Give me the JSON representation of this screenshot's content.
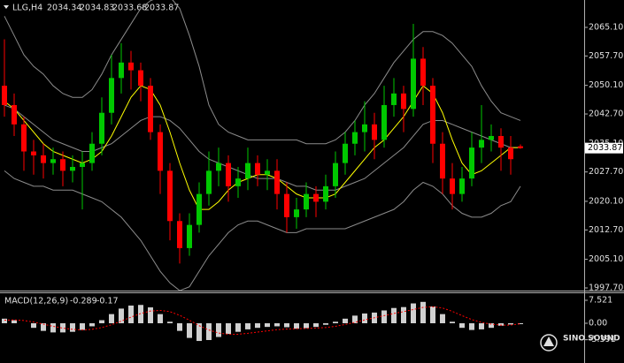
{
  "header": {
    "symbol": "LLG,H4"
  },
  "chart_data": [
    {
      "type": "candlestick",
      "open": [
        2050,
        2045,
        2040,
        2033,
        2032,
        2030,
        2031,
        2028,
        2029,
        2030,
        2035,
        2043,
        2052,
        2056,
        2054,
        2050,
        2038,
        2028,
        2015,
        2008,
        2014,
        2022,
        2028,
        2030,
        2024,
        2026,
        2030,
        2027,
        2028,
        2022,
        2016,
        2018,
        2022,
        2020,
        2024,
        2030,
        2035,
        2038,
        2040,
        2036,
        2045,
        2048,
        2044,
        2057,
        2050,
        2035,
        2026,
        2022,
        2026,
        2034,
        2036,
        2037,
        2034,
        2034.34
      ],
      "high": [
        2062,
        2048,
        2042,
        2036,
        2035,
        2034,
        2033,
        2032,
        2033,
        2038,
        2047,
        2058,
        2061,
        2059,
        2056,
        2052,
        2040,
        2030,
        2017,
        2017,
        2025,
        2033,
        2034,
        2032,
        2029,
        2034,
        2032,
        2031,
        2031,
        2025,
        2021,
        2025,
        2024,
        2027,
        2033,
        2038,
        2041,
        2046,
        2043,
        2050,
        2052,
        2050,
        2066,
        2060,
        2052,
        2038,
        2030,
        2029,
        2038,
        2045,
        2040,
        2039,
        2037,
        2034.83
      ],
      "low": [
        2042,
        2037,
        2028,
        2027,
        2026,
        2027,
        2024,
        2025,
        2018,
        2028,
        2032,
        2040,
        2048,
        2049,
        2046,
        2036,
        2022,
        2010,
        2004,
        2006,
        2012,
        2019,
        2024,
        2020,
        2021,
        2023,
        2024,
        2023,
        2018,
        2012,
        2013,
        2016,
        2016,
        2018,
        2021,
        2027,
        2032,
        2033,
        2031,
        2034,
        2042,
        2038,
        2042,
        2045,
        2030,
        2022,
        2018,
        2020,
        2024,
        2030,
        2033,
        2028,
        2027,
        2033.68
      ],
      "close": [
        2045,
        2040,
        2033,
        2032,
        2030,
        2031,
        2028,
        2029,
        2030,
        2035,
        2043,
        2052,
        2056,
        2054,
        2050,
        2038,
        2028,
        2015,
        2008,
        2014,
        2022,
        2028,
        2030,
        2024,
        2026,
        2030,
        2027,
        2028,
        2022,
        2016,
        2018,
        2022,
        2020,
        2024,
        2030,
        2035,
        2038,
        2040,
        2036,
        2045,
        2048,
        2044,
        2057,
        2050,
        2035,
        2026,
        2022,
        2026,
        2034,
        2036,
        2037,
        2034,
        2031,
        2033.87
      ],
      "up_color": "#00c800",
      "down_color": "#ff0000",
      "series": [
        {
          "color": "#8c8c8c",
          "values": [
            2068,
            2063,
            2058,
            2055,
            2053,
            2050,
            2048,
            2047,
            2047,
            2049,
            2053,
            2058,
            2062,
            2066,
            2070,
            2072,
            2073,
            2073,
            2070,
            2063,
            2055,
            2045,
            2040,
            2038,
            2037,
            2036,
            2036,
            2036,
            2036,
            2036,
            2036,
            2035,
            2035,
            2035,
            2036,
            2038,
            2041,
            2045,
            2048,
            2052,
            2056,
            2059,
            2062,
            2064,
            2064,
            2063,
            2061,
            2058,
            2055,
            2050,
            2046,
            2043,
            2042,
            2041
          ]
        },
        {
          "color": "#8c8c8c",
          "values": [
            2045,
            2044,
            2042,
            2040,
            2038,
            2036,
            2035,
            2034,
            2033,
            2033,
            2034,
            2035,
            2037,
            2039,
            2041,
            2042,
            2042,
            2041,
            2039,
            2036,
            2033,
            2031,
            2030,
            2029,
            2028,
            2027,
            2026,
            2026,
            2026,
            2025,
            2024,
            2024,
            2023,
            2023,
            2023,
            2024,
            2025,
            2026,
            2028,
            2030,
            2032,
            2034,
            2037,
            2040,
            2041,
            2041,
            2040,
            2039,
            2038,
            2037,
            2036,
            2035,
            2034,
            2034
          ]
        },
        {
          "color": "#8c8c8c",
          "values": [
            2028,
            2026,
            2025,
            2024,
            2024,
            2023,
            2023,
            2023,
            2022,
            2021,
            2020,
            2018,
            2016,
            2013,
            2010,
            2006,
            2002,
            1999,
            1997,
            1998,
            2002,
            2006,
            2009,
            2012,
            2014,
            2015,
            2015,
            2014,
            2013,
            2012,
            2012,
            2013,
            2013,
            2013,
            2013,
            2013,
            2014,
            2015,
            2016,
            2017,
            2018,
            2020,
            2023,
            2025,
            2024,
            2022,
            2019,
            2017,
            2016,
            2016,
            2017,
            2019,
            2020,
            2024
          ]
        },
        {
          "color": "#ffff00",
          "values": [
            2046,
            2044,
            2041,
            2038,
            2035,
            2033,
            2032,
            2031,
            2030,
            2031,
            2033,
            2037,
            2042,
            2047,
            2050,
            2049,
            2045,
            2038,
            2030,
            2023,
            2018,
            2018,
            2020,
            2023,
            2025,
            2026,
            2027,
            2027,
            2026,
            2024,
            2022,
            2021,
            2021,
            2021,
            2022,
            2025,
            2028,
            2031,
            2034,
            2036,
            2039,
            2042,
            2046,
            2050,
            2048,
            2043,
            2036,
            2030,
            2027,
            2028,
            2030,
            2032,
            2034,
            2034
          ]
        }
      ],
      "ylim": [
        1997.24,
        2072.18
      ],
      "yticks": [
        {
          "value": 2065.1,
          "label": "2065.10"
        },
        {
          "value": 2057.7,
          "label": "2057.70"
        },
        {
          "value": 2050.1,
          "label": "2050.10"
        },
        {
          "value": 2042.7,
          "label": "2042.70"
        },
        {
          "value": 2035.1,
          "label": "2035.10"
        },
        {
          "value": 2027.7,
          "label": "2027.70"
        },
        {
          "value": 2020.1,
          "label": "2020.10"
        },
        {
          "value": 2012.7,
          "label": "2012.70"
        },
        {
          "value": 2005.1,
          "label": "2005.10"
        },
        {
          "value": 1997.7,
          "label": "1997.70"
        }
      ]
    },
    {
      "type": "macd",
      "title": "MACD(12,26,9)",
      "values": [
        1.5,
        1,
        0,
        -1.5,
        -2.5,
        -3,
        -3,
        -2.8,
        -2.2,
        -1,
        1,
        3,
        4.8,
        5.8,
        6,
        5.2,
        3,
        0.5,
        -2.5,
        -4.8,
        -5.8,
        -5.5,
        -4.5,
        -3.5,
        -2.8,
        -2,
        -1.5,
        -1.2,
        -1,
        -1.3,
        -1.8,
        -1.6,
        -1.2,
        -0.5,
        0.5,
        1.5,
        2.5,
        3.2,
        3.5,
        4.2,
        5,
        5.3,
        6.5,
        7,
        5.5,
        3,
        0.5,
        -1.5,
        -2.2,
        -2,
        -1.5,
        -0.8,
        -0.4,
        -0.289
      ],
      "color": "#d0d0d0",
      "signal": {
        "color": "#ff0000",
        "values": [
          1,
          1.1,
          0.9,
          0.4,
          -0.3,
          -1,
          -1.6,
          -2,
          -2.2,
          -2,
          -1.4,
          -0.5,
          0.7,
          2,
          3.2,
          4,
          4.2,
          3.8,
          2.6,
          1,
          -0.8,
          -2.2,
          -3.2,
          -3.6,
          -3.6,
          -3.3,
          -2.9,
          -2.5,
          -2.1,
          -1.9,
          -1.8,
          -1.7,
          -1.6,
          -1.4,
          -1,
          -0.4,
          0.3,
          1.1,
          1.8,
          2.5,
          3.2,
          3.8,
          4.5,
          5.2,
          5.4,
          5,
          3.9,
          2.5,
          1.2,
          0.3,
          -0.3,
          -0.6,
          -0.6,
          -0.17
        ]
      },
      "ylim": [
        -12.15,
        9.836
      ],
      "yticks": [
        7.521,
        {
          "value": 0,
          "label": "0.00"
        },
        -5.391
      ]
    }
  ],
  "logo": "SINO SOUND"
}
